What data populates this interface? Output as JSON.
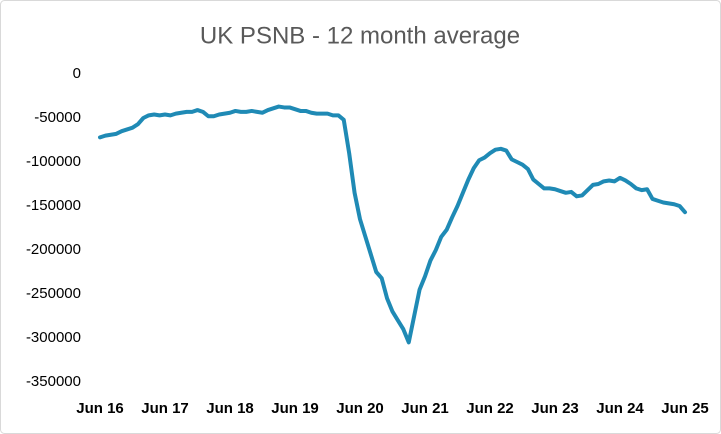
{
  "chart_data": {
    "type": "line",
    "title": "UK PSNB - 12 month average",
    "categories": [
      "Jun 16",
      null,
      null,
      null,
      null,
      null,
      null,
      null,
      null,
      null,
      null,
      null,
      "Jun 17",
      null,
      null,
      null,
      null,
      null,
      null,
      null,
      null,
      null,
      null,
      null,
      "Jun 18",
      null,
      null,
      null,
      null,
      null,
      null,
      null,
      null,
      null,
      null,
      null,
      "Jun 19",
      null,
      null,
      null,
      null,
      null,
      null,
      null,
      null,
      null,
      null,
      null,
      "Jun 20",
      null,
      null,
      null,
      null,
      null,
      null,
      null,
      null,
      null,
      null,
      null,
      "Jun 21",
      null,
      null,
      null,
      null,
      null,
      null,
      null,
      null,
      null,
      null,
      null,
      "Jun 22",
      null,
      null,
      null,
      null,
      null,
      null,
      null,
      null,
      null,
      null,
      null,
      "Jun 23",
      null,
      null,
      null,
      null,
      null,
      null,
      null,
      null,
      null,
      null,
      null,
      "Jun 24",
      null,
      null,
      null,
      null,
      null,
      null,
      null,
      null,
      null,
      null,
      null,
      "Jun 25"
    ],
    "series": [
      {
        "color": "#1f8ab5",
        "values": [
          -72000,
          -70000,
          -69000,
          -68000,
          -65000,
          -63000,
          -61000,
          -57000,
          -50000,
          -47000,
          -46000,
          -47000,
          -46000,
          -47000,
          -45000,
          -44000,
          -43000,
          -43000,
          -41000,
          -43000,
          -48000,
          -48000,
          -46000,
          -45000,
          -44000,
          -42000,
          -43000,
          -43000,
          -42000,
          -43000,
          -44000,
          -41000,
          -39000,
          -37000,
          -38000,
          -38000,
          -40000,
          -42000,
          -42000,
          -44000,
          -45000,
          -45000,
          -45000,
          -47000,
          -47000,
          -52000,
          -90000,
          -135000,
          -165000,
          -185000,
          -205000,
          -225000,
          -232000,
          -255000,
          -270000,
          -280000,
          -290000,
          -305000,
          -275000,
          -245000,
          -230000,
          -212000,
          -200000,
          -185000,
          -177000,
          -163000,
          -150000,
          -135000,
          -120000,
          -107000,
          -98000,
          -95000,
          -90000,
          -86000,
          -85000,
          -87000,
          -97000,
          -100000,
          -103000,
          -108000,
          -120000,
          -125000,
          -130000,
          -130000,
          -131000,
          -133000,
          -135000,
          -134000,
          -139000,
          -138000,
          -132000,
          -126000,
          -125000,
          -122000,
          -121000,
          -122000,
          -118000,
          -121000,
          -125000,
          -130000,
          -132000,
          -131000,
          -142000,
          -144000,
          -146000,
          -147000,
          -148000,
          -150000,
          -157000
        ]
      }
    ],
    "ylim": [
      -350000,
      0
    ],
    "yticks": [
      0,
      -50000,
      -100000,
      -150000,
      -200000,
      -250000,
      -300000,
      -350000
    ],
    "grid": false
  }
}
